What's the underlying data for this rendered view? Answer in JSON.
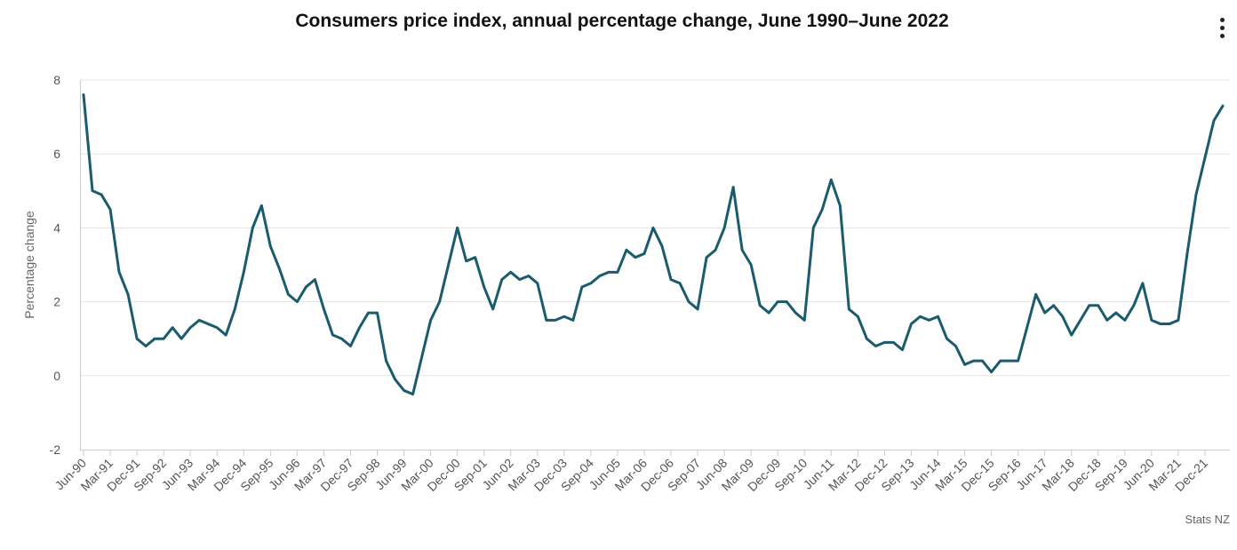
{
  "menu_icon": "more-vertical-icon",
  "chart_data": {
    "type": "line",
    "title": "Consumers price index, annual percentage change, June 1990–June 2022",
    "xlabel": "",
    "ylabel": "Percentage change",
    "credit": "Stats NZ",
    "ylim": [
      -2,
      8
    ],
    "yticks": [
      8,
      6,
      4,
      2,
      0,
      -2
    ],
    "xtick_labels": [
      "Jun-90",
      "Mar-91",
      "Dec-91",
      "Sep-92",
      "Jun-93",
      "Mar-94",
      "Dec-94",
      "Sep-95",
      "Jun-96",
      "Mar-97",
      "Dec-97",
      "Sep-98",
      "Jun-99",
      "Mar-00",
      "Dec-00",
      "Sep-01",
      "Jun-02",
      "Mar-03",
      "Dec-03",
      "Sep-04",
      "Jun-05",
      "Mar-06",
      "Dec-06",
      "Sep-07",
      "Jun-08",
      "Mar-09",
      "Dec-09",
      "Sep-10",
      "Jun-11",
      "Mar-12",
      "Dec-12",
      "Sep-13",
      "Jun-14",
      "Mar-15",
      "Dec-15",
      "Sep-16",
      "Jun-17",
      "Mar-18",
      "Dec-18",
      "Sep-19",
      "Jun-20",
      "Mar-21",
      "Dec-21"
    ],
    "grid": true,
    "line_color": "#1b5b6e",
    "series": [
      {
        "values": [
          7.6,
          5.0,
          4.9,
          4.5,
          2.8,
          2.2,
          1.0,
          0.8,
          1.0,
          1.0,
          1.3,
          1.0,
          1.3,
          1.5,
          1.4,
          1.3,
          1.1,
          1.8,
          2.8,
          4.0,
          4.6,
          3.5,
          2.9,
          2.2,
          2.0,
          2.4,
          2.6,
          1.8,
          1.1,
          1.0,
          0.8,
          1.3,
          1.7,
          1.7,
          0.4,
          -0.1,
          -0.4,
          -0.5,
          0.5,
          1.5,
          2.0,
          3.0,
          4.0,
          3.1,
          3.2,
          2.4,
          1.8,
          2.6,
          2.8,
          2.6,
          2.7,
          2.5,
          1.5,
          1.5,
          1.6,
          1.5,
          2.4,
          2.5,
          2.7,
          2.8,
          2.8,
          3.4,
          3.2,
          3.3,
          4.0,
          3.5,
          2.6,
          2.5,
          2.0,
          1.8,
          3.2,
          3.4,
          4.0,
          5.1,
          3.4,
          3.0,
          1.9,
          1.7,
          2.0,
          2.0,
          1.7,
          1.5,
          4.0,
          4.5,
          5.3,
          4.6,
          1.8,
          1.6,
          1.0,
          0.8,
          0.9,
          0.9,
          0.7,
          1.4,
          1.6,
          1.5,
          1.6,
          1.0,
          0.8,
          0.3,
          0.4,
          0.4,
          0.1,
          0.4,
          0.4,
          0.4,
          1.3,
          2.2,
          1.7,
          1.9,
          1.6,
          1.1,
          1.5,
          1.9,
          1.9,
          1.5,
          1.7,
          1.5,
          1.9,
          2.5,
          1.5,
          1.4,
          1.4,
          1.5,
          3.3,
          4.9,
          5.9,
          6.9,
          7.3
        ]
      }
    ]
  }
}
